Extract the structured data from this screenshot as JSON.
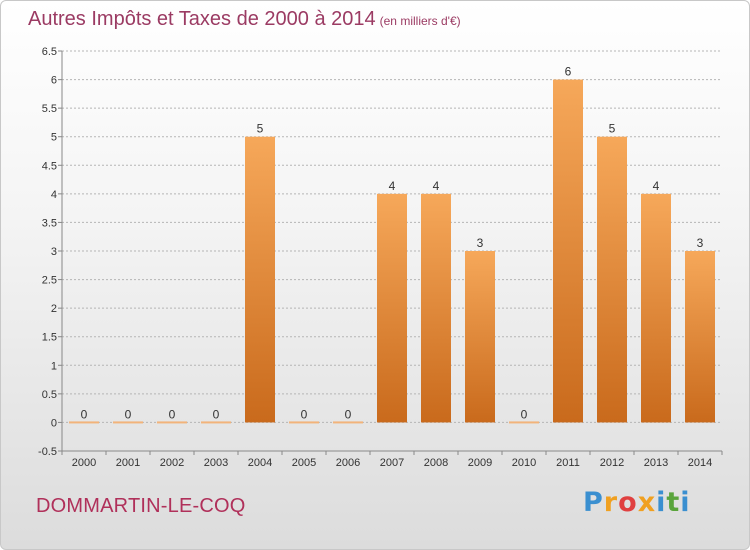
{
  "title": "Autres Impôts et Taxes de 2000 à 2014",
  "subtitle": "(en milliers d'€)",
  "commune": "DOMMARTIN-LE-COQ",
  "logo": {
    "letters": [
      "P",
      "r",
      "o",
      "x",
      "i",
      "t",
      "i"
    ],
    "colors": [
      "#3a8fd0",
      "#f0a020",
      "#e04040",
      "#f0a020",
      "#3a8fd0",
      "#5aa43c",
      "#3a8fd0"
    ]
  },
  "colors": {
    "bar_top": "#f6a85a",
    "bar_bottom": "#c96a1c",
    "zero_bar": "#f2b37a",
    "grid": "#b5b5b5",
    "axis": "#888888"
  },
  "chart_data": {
    "type": "bar",
    "categories": [
      "2000",
      "2001",
      "2002",
      "2003",
      "2004",
      "2005",
      "2006",
      "2007",
      "2008",
      "2009",
      "2010",
      "2011",
      "2012",
      "2013",
      "2014"
    ],
    "values": [
      0,
      0,
      0,
      0,
      5,
      0,
      0,
      4,
      4,
      3,
      0,
      6,
      5,
      4,
      3
    ],
    "data_labels": [
      "0",
      "0",
      "0",
      "0",
      "5",
      "0",
      "0",
      "4",
      "4",
      "3",
      "0",
      "6",
      "5",
      "4",
      "3"
    ],
    "y_ticks": [
      "-0.5",
      "0",
      "0.5",
      "1",
      "1.5",
      "2",
      "2.5",
      "3",
      "3.5",
      "4",
      "4.5",
      "5",
      "5.5",
      "6",
      "6.5"
    ],
    "ylim": [
      -0.5,
      6.5
    ],
    "grid": true,
    "title": "Autres Impôts et Taxes de 2000 à 2014",
    "xlabel": "",
    "ylabel": ""
  }
}
